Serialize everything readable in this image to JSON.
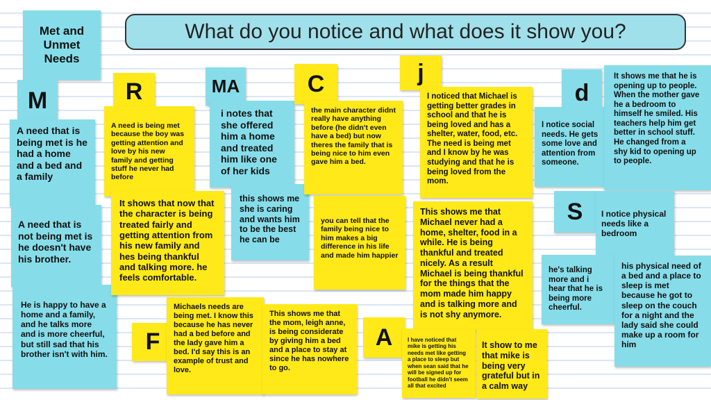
{
  "title": "What do you notice and what does it show you?",
  "header_note": "Met and Unmet Needs",
  "colors": {
    "cyan_note": "#86dde9",
    "yellow_note": "#ffe919",
    "banner": "#a0e0ea"
  },
  "groups": {
    "M": {
      "letter": "M",
      "notes": [
        "A need that is being met is he had a home and a bed and a family",
        "A need that is not being met is he doesn't have his brother.",
        "He is happy to have a home and a family, and he talks more and is more cheerful, but still sad that his brother isn't with him."
      ]
    },
    "R": {
      "letter": "R",
      "notes": [
        "A need is being met because the boy was getting attention and love by his new family and getting stuff he never had before",
        "It shows that now that the character is being treated fairly and getting attention from his new family and hes being thankful and talking more. he feels comfortable."
      ]
    },
    "MA": {
      "letter": "MA",
      "notes": [
        "i notes that she offered him a home and treated him like one of her kids",
        "this shows me she is caring and wants him to be the best he can be"
      ]
    },
    "C": {
      "letter": "C",
      "notes": [
        "the main character didnt really have anything before (he didn't even have a bed) but now theres the  family that is being nice to him even gave him a bed.",
        "you can tell that the family being nice to him makes a big difference in his life and made him happier"
      ]
    },
    "j": {
      "letter": "j",
      "notes": [
        "I noticed that Michael is getting better grades in school and that he is being loved and has a shelter, water, food, etc. The need is being met and I know by he was studying and that he is being loved from the mom.",
        "This shows me that Michael never had a home, shelter, food in a while. He is being thankful and treated nicely. As a result Michael is being thankful for the things that the mom made him happy and is talking more and is not shy anymore."
      ]
    },
    "F": {
      "letter": "F",
      "notes": [
        "Michaels needs are being met. I know this because he has never had a bed before and the lady gave him a bed. I'd say this is an example of trust and love.",
        "This shows me that the mom, leigh anne, is being considerate by giving him a bed and a place to stay at since he has nowhere to go."
      ]
    },
    "A": {
      "letter": "A",
      "notes": [
        "I have noticed that mike is getting his needs met like getting a place to sleep but when sean said that he will be signed up for football he didn't seem all that excited",
        "It show to me that mike is being very grateful but in a calm way"
      ]
    },
    "d": {
      "letter": "d",
      "notes": [
        "I notice social needs. He gets some love and attention from someone.",
        "It shows me that he is opening up to people. When the mother gave he a bedroom to himself he smiled. His teachers help him get better in school stuff. He changed from a shy kid to opening up to people."
      ]
    },
    "S": {
      "letter": "S",
      "notes": [
        "I notice physical needs like a bedroom",
        "he's talking more and i hear that he is being more cheerful.",
        "his physical need of a bed and a place to sleep is met because he got to sleep on the couch for a night and the lady said she could make up a room for him"
      ]
    }
  }
}
